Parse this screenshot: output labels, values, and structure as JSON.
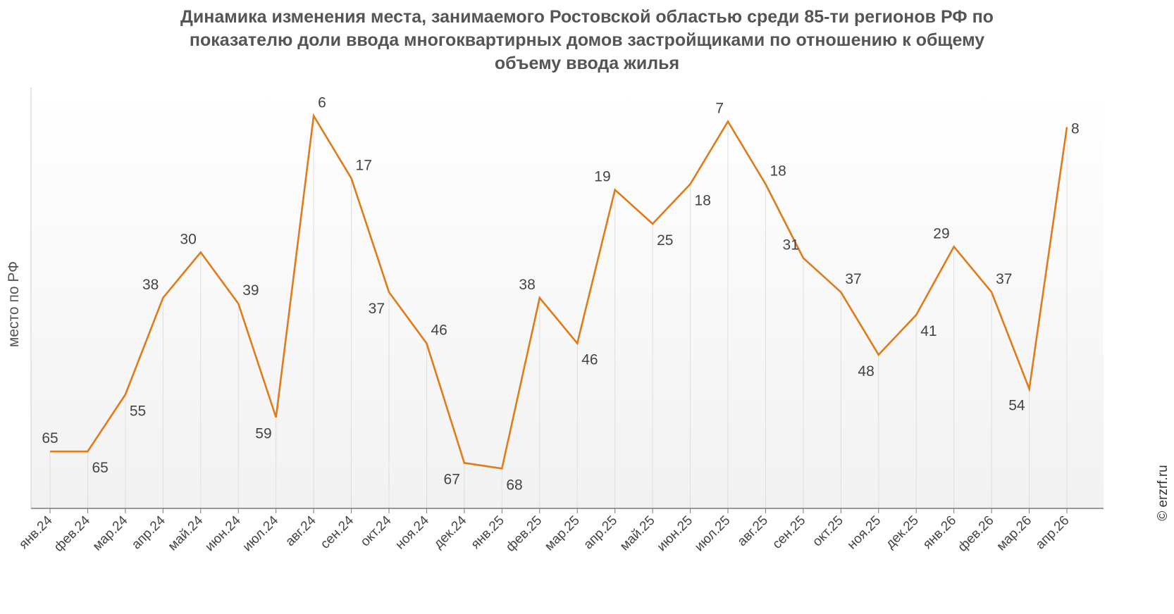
{
  "title_lines": [
    "Динамика изменения места, занимаемого Ростовской областью среди 85-ти регионов РФ по",
    "показателю доли ввода многоквартирных домов застройщиками по отношению к общему",
    "объему ввода жилья"
  ],
  "copyright": "© erzrf.ru",
  "chart_data": {
    "type": "line",
    "title": "Динамика изменения места, занимаемого Ростовской областью среди 85-ти регионов РФ по показателю доли ввода многоквартирных домов застройщиками по отношению к общему объему ввода жилья",
    "xlabel": "",
    "ylabel": "место по РФ",
    "y_inverted": true,
    "ylim": [
      1,
      75
    ],
    "grid": "vertical drop lines",
    "legend": "none",
    "line_color": "#e07b1a",
    "categories": [
      "янв.24",
      "фев.24",
      "мар.24",
      "апр.24",
      "май.24",
      "июн.24",
      "июл.24",
      "авг.24",
      "сен.24",
      "окт.24",
      "ноя.24",
      "дек.24",
      "янв.25",
      "фев.25",
      "мар.25",
      "апр.25",
      "май.25",
      "июн.25",
      "июл.25",
      "авг.25",
      "сен.25",
      "окт.25",
      "ноя.25",
      "дек.25",
      "янв.26",
      "фев.26",
      "мар.26",
      "апр.26"
    ],
    "values": [
      65,
      65,
      55,
      38,
      30,
      39,
      59,
      6,
      17,
      37,
      46,
      67,
      68,
      38,
      46,
      19,
      25,
      18,
      7,
      18,
      31,
      37,
      48,
      41,
      29,
      37,
      54,
      8
    ]
  }
}
